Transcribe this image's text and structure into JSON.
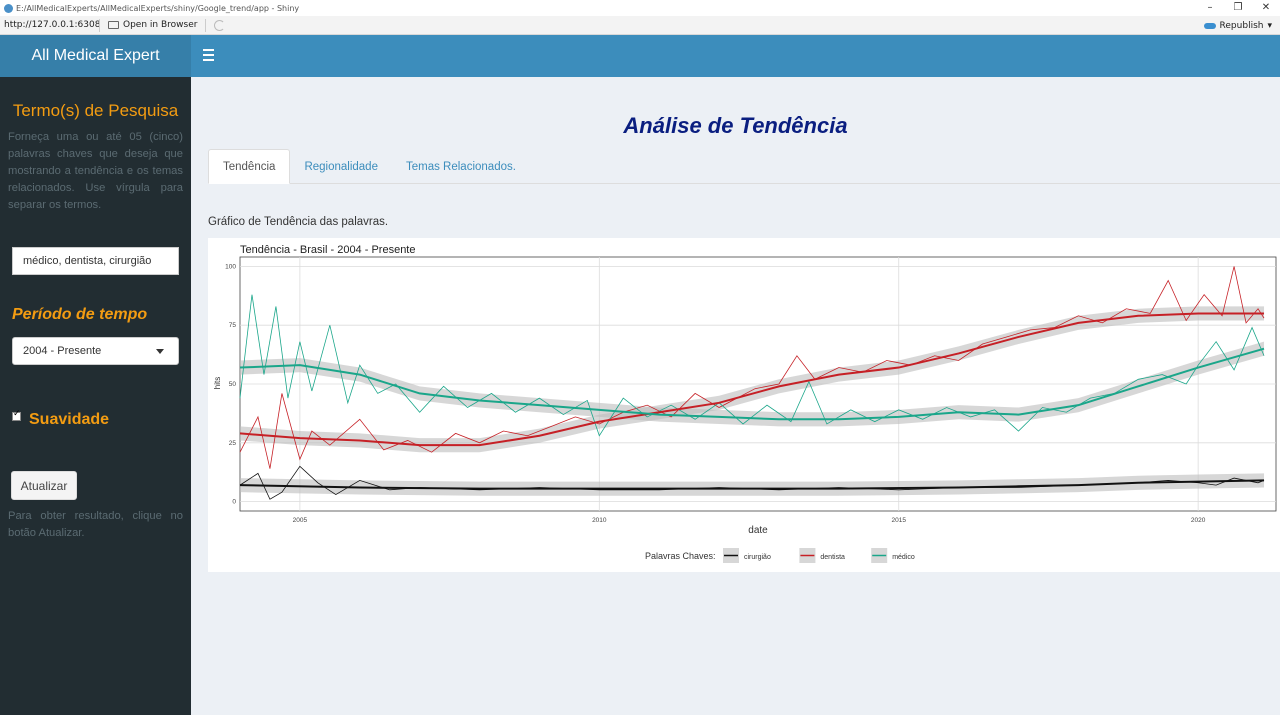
{
  "window": {
    "title": "E:/AllMedicalExperts/AllMedicalExperts/shiny/Google_trend/app - Shiny",
    "controls": [
      "–",
      "❐",
      "✕"
    ]
  },
  "toolbar": {
    "url": "http://127.0.0.1:6308",
    "open_browser": "Open in Browser",
    "republish": "Republish"
  },
  "header": {
    "logo": "All Medical Expert"
  },
  "sidebar": {
    "search_heading": "Termo(s) de Pesquisa",
    "search_desc": "Forneça uma ou até 05 (cinco) palavras chaves que deseja que mostrando a tendência e os temas relacionados. Use vírgula para separar os termos.",
    "search_value": "médico, dentista, cirurgião",
    "period_heading": "Período de tempo",
    "period_value": "2004 - Presente",
    "smooth_label": "Suavidade",
    "smooth_checked": true,
    "update_button": "Atualizar",
    "update_desc": "Para obter resultado, clique no botão Atualizar."
  },
  "main": {
    "title": "Análise de Tendência",
    "tabs": [
      {
        "label": "Tendência",
        "active": true
      },
      {
        "label": "Regionalidade",
        "active": false
      },
      {
        "label": "Temas Relacionados.",
        "active": false
      }
    ],
    "chart_caption": "Gráfico de Tendência das palavras."
  },
  "chart_data": {
    "type": "line",
    "title": "Tendência - Brasil - 2004 - Presente",
    "xlabel": "date",
    "ylabel": "hits",
    "xlim": [
      2004.0,
      2021.3
    ],
    "ylim": [
      -4,
      104
    ],
    "x_ticks": [
      2005,
      2010,
      2015,
      2020
    ],
    "y_ticks": [
      0,
      25,
      50,
      75,
      100
    ],
    "grid": true,
    "legend_title": "Palavras Chaves:",
    "legend_position": "bottom",
    "smooth": true,
    "series": [
      {
        "name": "cirurgião",
        "color": "#111111",
        "smooth_x": [
          2004.0,
          2006.0,
          2008.0,
          2010.0,
          2012.0,
          2014.0,
          2016.0,
          2017.0,
          2018.0,
          2019.0,
          2020.0,
          2021.1
        ],
        "smooth_y": [
          7,
          6,
          5.5,
          5.5,
          5.5,
          5.5,
          6,
          6.5,
          7,
          8,
          8.5,
          9
        ],
        "x": [
          2004.0,
          2004.3,
          2004.5,
          2004.7,
          2005.0,
          2005.3,
          2005.6,
          2006.0,
          2006.5,
          2007.0,
          2008.0,
          2009.0,
          2010.0,
          2011.0,
          2012.0,
          2013.0,
          2014.0,
          2015.0,
          2016.0,
          2017.0,
          2018.0,
          2019.0,
          2019.5,
          2020.0,
          2020.3,
          2020.6,
          2021.0,
          2021.1
        ],
        "values": [
          7,
          12,
          1,
          4,
          15,
          8,
          3,
          9,
          5,
          6,
          5,
          6,
          5,
          5,
          6,
          5,
          6,
          5,
          6,
          6,
          7,
          8,
          9,
          8,
          7,
          10,
          8,
          9
        ]
      },
      {
        "name": "dentista",
        "color": "#c62026",
        "smooth_x": [
          2004.0,
          2005.0,
          2006.0,
          2007.0,
          2008.0,
          2009.0,
          2010.0,
          2011.0,
          2012.0,
          2013.0,
          2014.0,
          2015.0,
          2016.0,
          2017.0,
          2018.0,
          2019.0,
          2020.0,
          2021.1
        ],
        "smooth_y": [
          29,
          27,
          26,
          24,
          24,
          28,
          34,
          38,
          42,
          49,
          54,
          57,
          63,
          70,
          76,
          79,
          80,
          80
        ],
        "x": [
          2004.0,
          2004.3,
          2004.5,
          2004.7,
          2005.0,
          2005.2,
          2005.5,
          2006.0,
          2006.4,
          2006.8,
          2007.2,
          2007.6,
          2008.0,
          2008.4,
          2008.8,
          2009.2,
          2009.6,
          2010.0,
          2010.4,
          2010.8,
          2011.2,
          2011.6,
          2012.0,
          2012.3,
          2012.6,
          2013.0,
          2013.3,
          2013.6,
          2014.0,
          2014.4,
          2014.8,
          2015.2,
          2015.6,
          2016.0,
          2016.4,
          2016.8,
          2017.2,
          2017.6,
          2018.0,
          2018.4,
          2018.8,
          2019.2,
          2019.5,
          2019.8,
          2020.1,
          2020.4,
          2020.6,
          2020.8,
          2021.0,
          2021.1
        ],
        "values": [
          21,
          36,
          14,
          46,
          18,
          30,
          24,
          35,
          22,
          26,
          21,
          29,
          25,
          30,
          28,
          32,
          36,
          33,
          38,
          41,
          36,
          46,
          40,
          44,
          48,
          50,
          62,
          52,
          57,
          55,
          60,
          58,
          62,
          60,
          67,
          70,
          73,
          74,
          79,
          76,
          82,
          80,
          94,
          77,
          88,
          79,
          100,
          76,
          82,
          78
        ]
      },
      {
        "name": "médico",
        "color": "#1aa68a",
        "smooth_x": [
          2004.0,
          2005.0,
          2006.0,
          2007.0,
          2008.0,
          2009.0,
          2010.0,
          2011.0,
          2012.0,
          2013.0,
          2014.0,
          2015.0,
          2016.0,
          2017.0,
          2018.0,
          2019.0,
          2020.0,
          2021.1
        ],
        "smooth_y": [
          57,
          58,
          54,
          46,
          43,
          41,
          39,
          37,
          36,
          35,
          35,
          36,
          38,
          37,
          41,
          49,
          57,
          65
        ],
        "x": [
          2004.0,
          2004.2,
          2004.4,
          2004.6,
          2004.8,
          2005.0,
          2005.2,
          2005.5,
          2005.8,
          2006.0,
          2006.3,
          2006.6,
          2007.0,
          2007.4,
          2007.8,
          2008.2,
          2008.6,
          2009.0,
          2009.4,
          2009.8,
          2010.0,
          2010.4,
          2010.8,
          2011.2,
          2011.6,
          2012.0,
          2012.4,
          2012.8,
          2013.2,
          2013.5,
          2013.8,
          2014.2,
          2014.6,
          2015.0,
          2015.4,
          2015.8,
          2016.2,
          2016.6,
          2017.0,
          2017.4,
          2017.8,
          2018.2,
          2018.6,
          2019.0,
          2019.4,
          2019.8,
          2020.0,
          2020.3,
          2020.6,
          2020.9,
          2021.1
        ],
        "values": [
          44,
          88,
          54,
          83,
          44,
          68,
          47,
          75,
          42,
          58,
          46,
          50,
          38,
          49,
          40,
          46,
          38,
          44,
          37,
          43,
          28,
          44,
          36,
          41,
          35,
          42,
          33,
          41,
          34,
          51,
          33,
          39,
          34,
          39,
          35,
          40,
          36,
          39,
          30,
          40,
          38,
          44,
          46,
          52,
          54,
          50,
          58,
          68,
          56,
          74,
          62
        ]
      }
    ]
  }
}
